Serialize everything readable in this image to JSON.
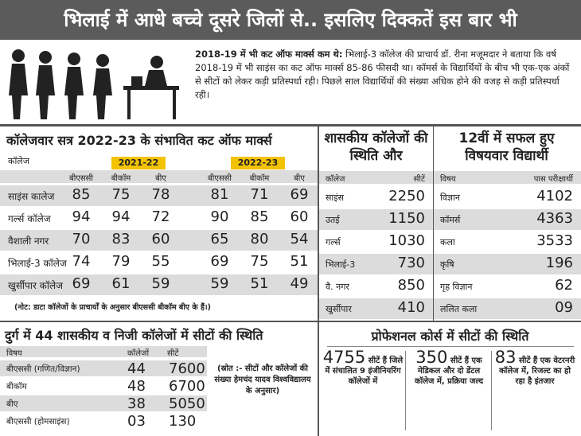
{
  "header": {
    "title": "भिलाई में आधे बच्चे दूसरे जिलों से.. इसलिए दिक्कतें इस बार भी"
  },
  "intro": {
    "lead": "2018-19 में भी कट ऑफ मार्क्स कम थे:",
    "text": "भिलाई-3 कॉलेज की प्राचार्य डॉ. रीना मजूमदार ने बताया कि वर्ष 2018-19 में भी साइंस का कट ऑफ मार्क्स 85-86 फीसदी था। कॉमर्स के विद्यार्थियों के बीच भी एक-एक अंकों से सीटों को लेकर कड़ी प्रतिस्पर्धा रही। पिछले साल विद्यार्थियों की संख्या अधिक होने की वजह से कड़ी प्रतिस्पर्धा रही।"
  },
  "cutoff_table": {
    "title": "कॉलेजवार सत्र 2022-23 के संभावित कट ऑफ मार्क्स",
    "college_header": "कॉलेज",
    "years": [
      "2021-22",
      "2022-23"
    ],
    "subheaders": [
      "बीएससी",
      "बीकॉम",
      "बीए",
      "बीएससी",
      "बीकॉम",
      "बीए"
    ],
    "rows": [
      [
        "साइंस कालेज",
        85,
        75,
        78,
        81,
        71,
        69
      ],
      [
        "गर्ल्स कॉलेज",
        94,
        94,
        72,
        90,
        85,
        60
      ],
      [
        "वैशाली नगर",
        70,
        83,
        60,
        65,
        80,
        54
      ],
      [
        "भिलाई-3 कॉलेज",
        74,
        79,
        55,
        69,
        75,
        51
      ],
      [
        "खुर्सीपार कॉलेज",
        69,
        61,
        59,
        59,
        51,
        49
      ]
    ],
    "note": "(नोट: डाटा कॉलेजों के प्राचार्यों के अनुसार बीएससी बीकॉम बीए के हैं।)"
  },
  "govt_colleges": {
    "title": "शासकीय कॉलेजों की स्थिति और",
    "headers": [
      "कॉलेज",
      "सीटें"
    ],
    "rows": [
      [
        "साइंस",
        2250
      ],
      [
        "उतई",
        1150
      ],
      [
        "गर्ल्स",
        1030
      ],
      [
        "भिलाई-3",
        730
      ],
      [
        "वै. नगर",
        850
      ],
      [
        "खुर्सीपार",
        410
      ]
    ]
  },
  "class12": {
    "title": "12वीं में सफल हुए विषयवार विद्यार्थी",
    "headers": [
      "विषय",
      "पास परीक्षार्थी"
    ],
    "rows": [
      [
        "विज्ञान",
        4102
      ],
      [
        "कॉमर्स",
        4363
      ],
      [
        "कला",
        3533
      ],
      [
        "कृषि",
        196
      ],
      [
        "गृह विज्ञान",
        62
      ],
      [
        "ललित कला",
        "09"
      ]
    ]
  },
  "durg_seats": {
    "title": "दुर्ग में 44 शासकीय व निजी कॉलेजों में सीटों की स्थिति",
    "headers": [
      "विषय",
      "कॉलेजों",
      "सीटें"
    ],
    "rows": [
      [
        "बीएससी (गणित/विज्ञान)",
        44,
        7600
      ],
      [
        "बीकॉम",
        48,
        6700
      ],
      [
        "बीए",
        38,
        5050
      ],
      [
        "बीएससी (होमसाइंस)",
        "03",
        130
      ]
    ],
    "source": "(स्रोत :- सीटों और कॉलेजों की संख्या हेमचंद यादव विश्वविद्यालय के अनुसार)"
  },
  "professional": {
    "title": "प्रोफेशनल कोर्स में सीटों की स्थिति",
    "items": [
      {
        "number": 4755,
        "text": "सीटें हैं जिले में संचालित 9 इंजीनियरिंग कॉलेजों में"
      },
      {
        "number": 350,
        "text": "सीटें हैं एक मेडिकल और दो डेंटल कॉलेज में, प्रक्रिया जल्द"
      },
      {
        "number": 83,
        "text": "सीटें हैं एक वेटरनरी कॉलेज में, रिजल्ट का हो रहा है इंतजार"
      }
    ]
  }
}
